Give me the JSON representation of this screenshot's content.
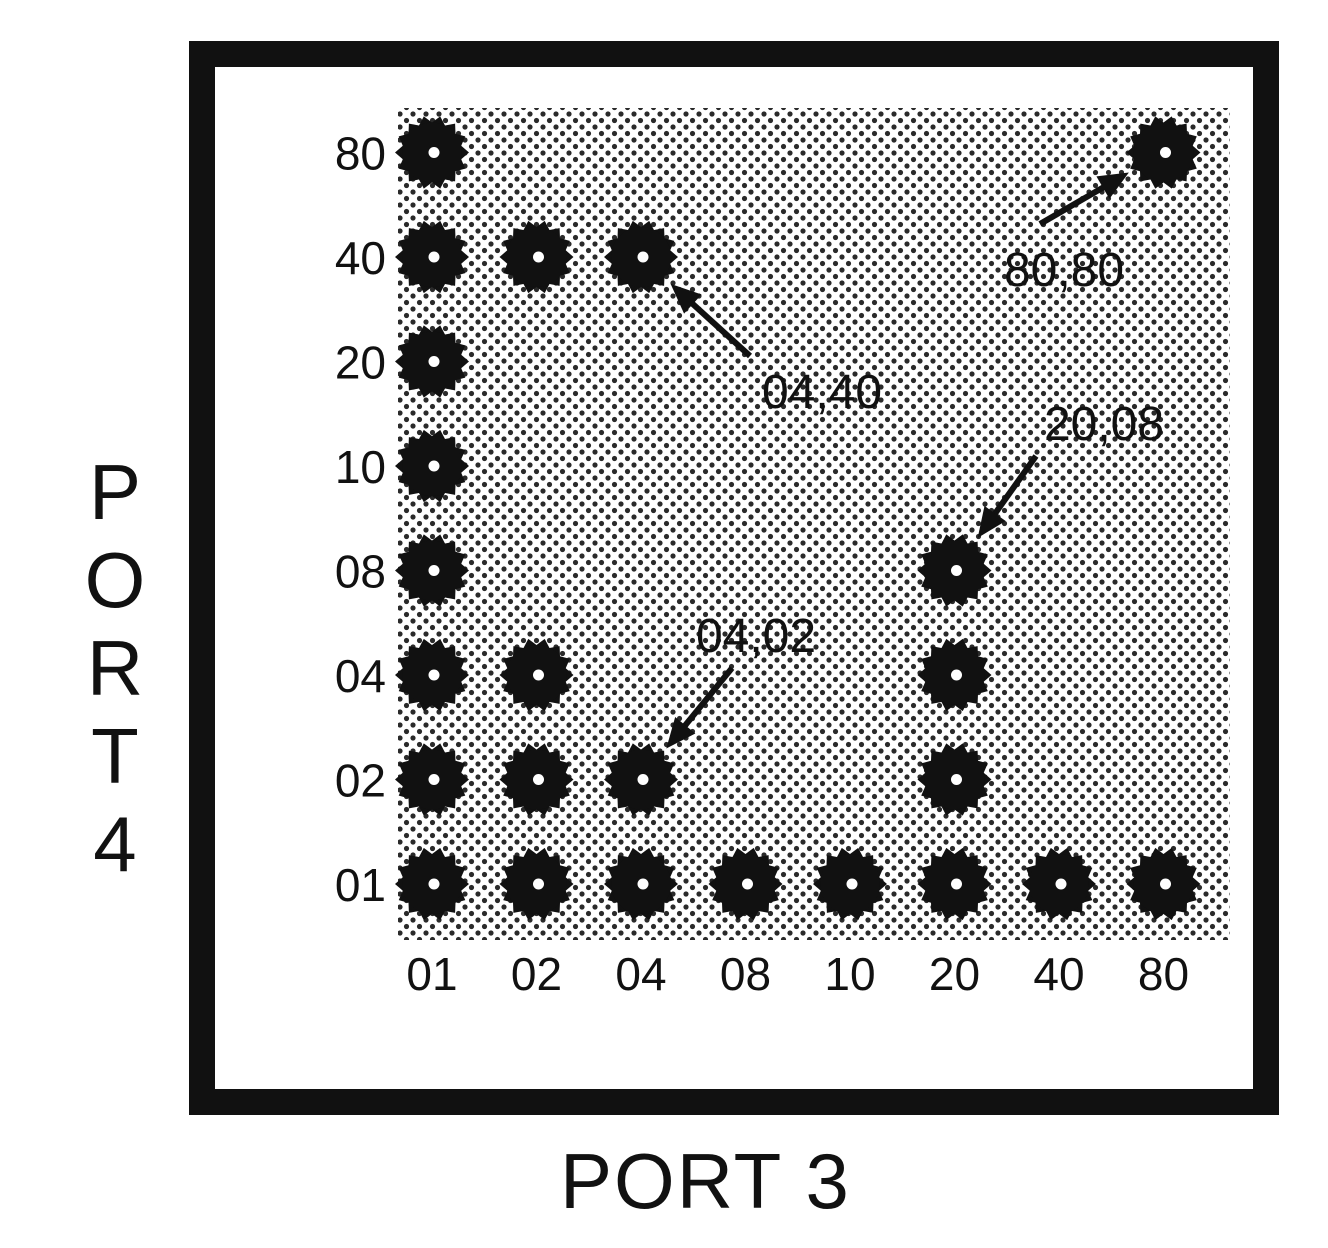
{
  "x_axis": {
    "title": "PORT 3",
    "ticks": [
      "01",
      "02",
      "04",
      "08",
      "10",
      "20",
      "40",
      "80"
    ]
  },
  "y_axis": {
    "title": "PORT 4",
    "title_chars": [
      "P",
      "O",
      "R",
      "T",
      "4"
    ],
    "ticks": [
      "01",
      "02",
      "04",
      "08",
      "10",
      "20",
      "40",
      "80"
    ]
  },
  "lit_points": [
    [
      "01",
      "01"
    ],
    [
      "02",
      "01"
    ],
    [
      "04",
      "01"
    ],
    [
      "08",
      "01"
    ],
    [
      "10",
      "01"
    ],
    [
      "20",
      "01"
    ],
    [
      "40",
      "01"
    ],
    [
      "80",
      "01"
    ],
    [
      "01",
      "02"
    ],
    [
      "02",
      "02"
    ],
    [
      "04",
      "02"
    ],
    [
      "20",
      "02"
    ],
    [
      "01",
      "04"
    ],
    [
      "02",
      "04"
    ],
    [
      "20",
      "04"
    ],
    [
      "01",
      "08"
    ],
    [
      "20",
      "08"
    ],
    [
      "01",
      "10"
    ],
    [
      "01",
      "20"
    ],
    [
      "01",
      "40"
    ],
    [
      "02",
      "40"
    ],
    [
      "04",
      "40"
    ],
    [
      "01",
      "80"
    ],
    [
      "80",
      "80"
    ]
  ],
  "callouts": [
    {
      "label": "80,80",
      "target": [
        "80",
        "80"
      ]
    },
    {
      "label": "04,40",
      "target": [
        "04",
        "40"
      ]
    },
    {
      "label": "20,08",
      "target": [
        "20",
        "08"
      ]
    },
    {
      "label": "04,02",
      "target": [
        "04",
        "02"
      ]
    }
  ],
  "colors": {
    "ink": "#111111",
    "panel": "#ffffff",
    "dot_pattern": "#2a2a2a"
  }
}
